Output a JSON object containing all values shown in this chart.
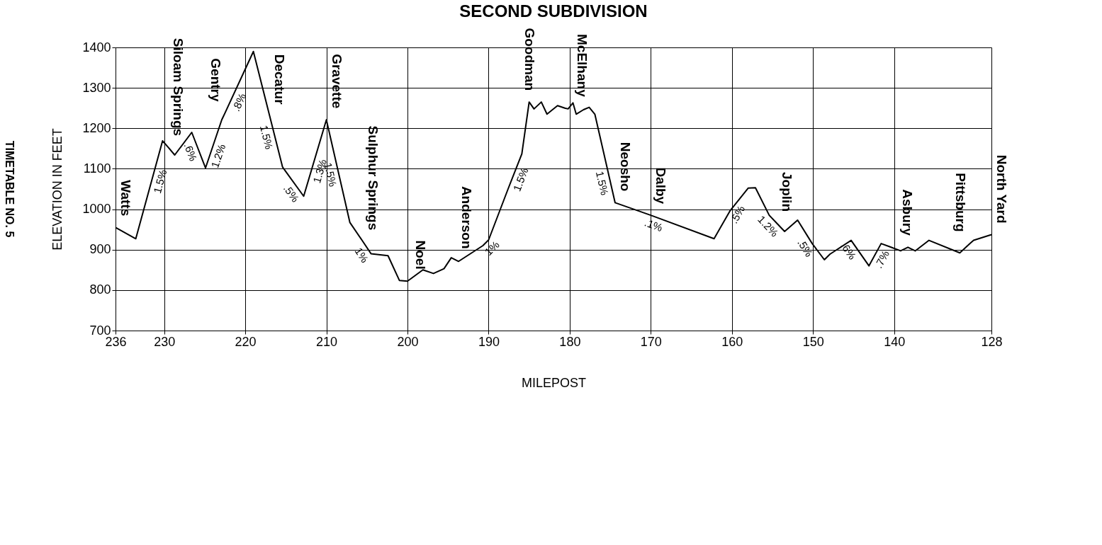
{
  "chart_data": {
    "type": "line",
    "title": "SECOND SUBDIVISION",
    "xlabel": "MILEPOST",
    "ylabel": "ELEVATION IN FEET",
    "color": "#000000",
    "grid": true,
    "xlim": [
      236,
      128
    ],
    "xticks": [
      236,
      230,
      220,
      210,
      200,
      190,
      180,
      170,
      160,
      150,
      140,
      128
    ],
    "ylim": [
      700,
      1400
    ],
    "yticks": [
      700,
      800,
      900,
      1000,
      1100,
      1200,
      1300,
      1400
    ],
    "x": [
      236,
      233.5,
      230.2,
      229.5,
      228.7,
      226.6,
      224.9,
      222.9,
      222.5,
      219,
      217,
      215.4,
      212.8,
      210,
      207.1,
      205.5,
      204.5,
      202.4,
      201,
      200.5,
      200,
      198.1,
      196.8,
      195.5,
      194.6,
      194,
      193.7,
      190.7,
      190,
      187.6,
      185.9,
      185,
      184.4,
      183.5,
      182.8,
      181.5,
      180.6,
      180.2,
      179.6,
      179.2,
      178.3,
      177.6,
      176.9,
      174.4,
      170,
      162.2,
      160.2,
      158,
      157.1,
      155.4,
      154.5,
      153.5,
      151.9,
      150.1,
      148.6,
      147.9,
      145.3,
      143.1,
      141.6,
      140.5,
      139.2,
      138.3,
      137.4,
      135.7,
      131.9,
      130.6,
      130.2,
      128
    ],
    "values": [
      955,
      927,
      1169,
      1153,
      1134,
      1190,
      1102,
      1221,
      1238,
      1390,
      1231,
      1104,
      1032,
      1221,
      967,
      920,
      890,
      885,
      824,
      823,
      822,
      850,
      841,
      853,
      880,
      874,
      871,
      910,
      924,
      1050,
      1137,
      1265,
      1248,
      1265,
      1235,
      1256,
      1250,
      1248,
      1263,
      1235,
      1246,
      1252,
      1235,
      1016,
      985,
      927,
      997,
      1052,
      1053,
      985,
      966,
      945,
      973,
      915,
      875,
      889,
      923,
      860,
      915,
      907,
      897,
      906,
      897,
      923,
      892,
      916,
      923,
      937
    ],
    "value_labels": [
      "Watts",
      null,
      null,
      "Siloam Springs",
      null,
      null,
      null,
      null,
      "Gentry",
      null,
      "Decatur",
      null,
      null,
      "Gravette",
      null,
      "Sulphur Springs",
      null,
      null,
      null,
      "Noel",
      null,
      null,
      null,
      null,
      null,
      "Anderson",
      null,
      null,
      null,
      null,
      null,
      "Goodman",
      null,
      null,
      null,
      null,
      "McElhany",
      null,
      null,
      null,
      null,
      null,
      null,
      "Neosho",
      "Dalby",
      null,
      null,
      null,
      null,
      null,
      "Joplin",
      null,
      null,
      null,
      null,
      null,
      null,
      null,
      null,
      "Asbury",
      null,
      null,
      null,
      null,
      null,
      "Pittsburg",
      null,
      "North Yard"
    ],
    "annotations": [
      "TIMETABLE NO. 5",
      {
        "text": "1.5%",
        "x": 231.5,
        "y": 1074
      },
      {
        "text": ".6%",
        "x": 225.8,
        "y": 1149
      },
      {
        "text": "1.2%",
        "x": 224.3,
        "y": 1138
      },
      {
        "text": ".8%",
        "x": 221.7,
        "y": 1273
      },
      {
        "text": "1.5%",
        "x": 216.4,
        "y": 1183
      },
      {
        "text": ".5%",
        "x": 213.5,
        "y": 1051
      },
      {
        "text": "1.3%",
        "x": 211.8,
        "y": 1100
      },
      {
        "text": "1.5%",
        "x": 208.5,
        "y": 1090
      },
      {
        "text": "1%",
        "x": 204.8,
        "y": 898
      },
      {
        "text": "1%",
        "x": 190.3,
        "y": 918
      },
      {
        "text": "1.5%",
        "x": 187,
        "y": 1081
      },
      {
        "text": "1.5%",
        "x": 175,
        "y": 1069
      },
      {
        "text": ".1%",
        "x": 169.3,
        "y": 980
      },
      {
        "text": ".5%",
        "x": 160.2,
        "y": 997
      },
      {
        "text": "1.2%",
        "x": 154.8,
        "y": 972
      },
      {
        "text": ".5%",
        "x": 150.1,
        "y": 915
      },
      {
        "text": ".6%",
        "x": 144.8,
        "y": 909
      },
      {
        "text": ".7%",
        "x": 142.4,
        "y": 886
      }
    ]
  }
}
